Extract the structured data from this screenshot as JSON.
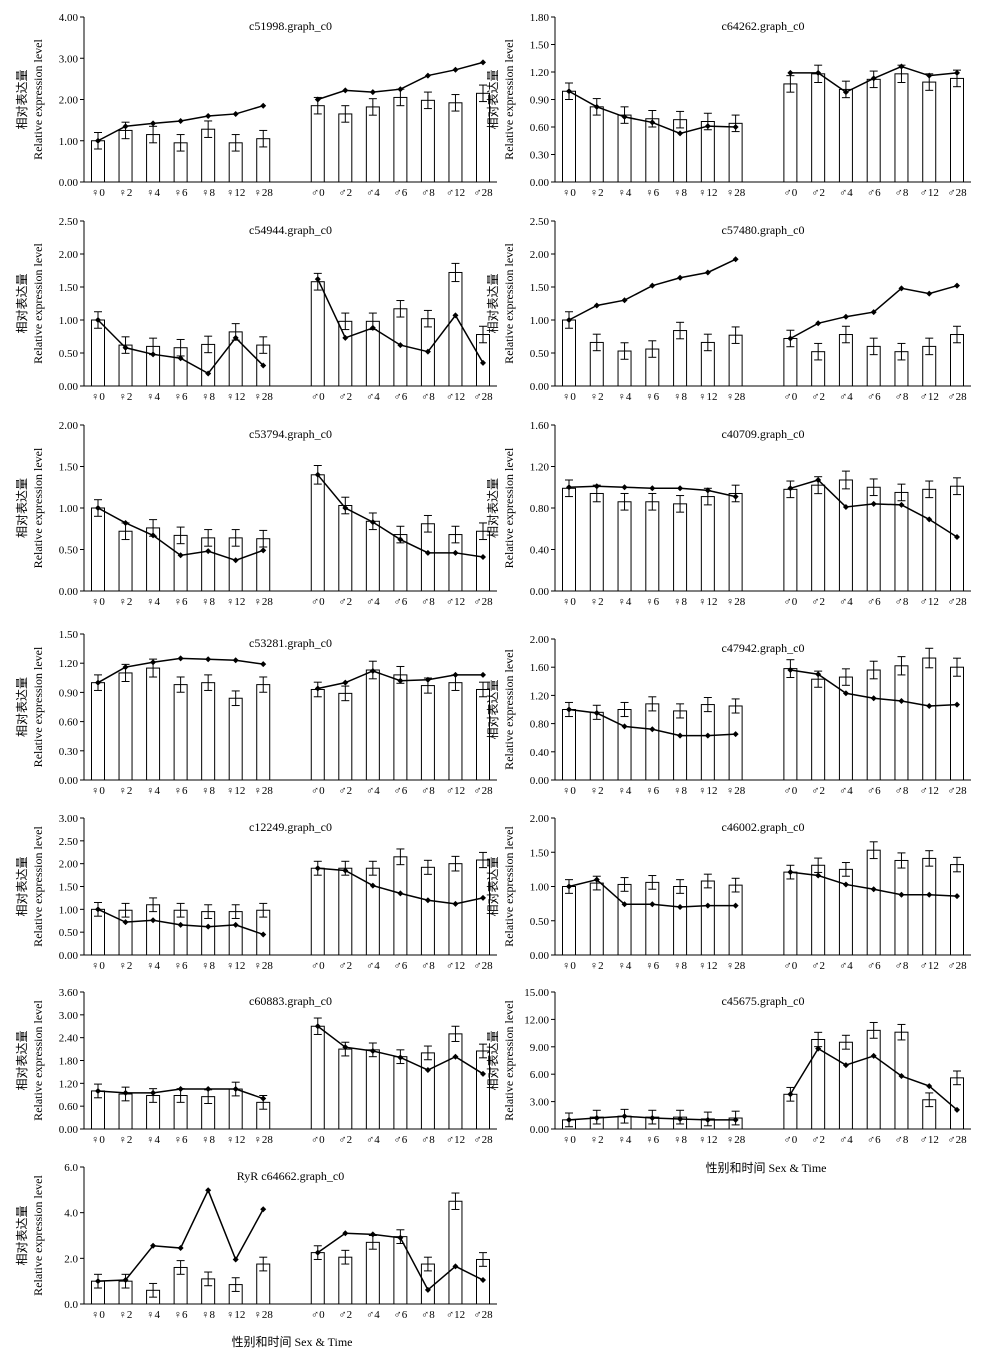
{
  "figure": {
    "ylabel_zh": "相对表达量",
    "ylabel_en": "Relative expression level",
    "xlabel": "性别和时间 Sex & Time",
    "categories": [
      "♀0",
      "♀2",
      "♀4",
      "♀6",
      "♀8",
      "♀12",
      "♀28",
      "♂0",
      "♂2",
      "♂4",
      "♂6",
      "♂8",
      "♂12",
      "♂28"
    ]
  },
  "chart_data": [
    {
      "type": "bar",
      "title": "c51998.graph_c0",
      "ylim": [
        0,
        4.0
      ],
      "yticks": [
        "0.00",
        "1.00",
        "2.00",
        "3.00",
        "4.00"
      ],
      "series": [
        {
          "values": [
            1.0,
            1.25,
            1.15,
            0.95,
            1.28,
            0.95,
            1.05,
            1.85,
            1.65,
            1.82,
            2.05,
            1.98,
            1.92,
            2.15
          ]
        },
        {
          "values": [
            1.0,
            1.35,
            1.42,
            1.48,
            1.6,
            1.65,
            1.85,
            2.0,
            2.22,
            2.18,
            2.25,
            2.58,
            2.72,
            2.9
          ]
        }
      ]
    },
    {
      "type": "bar",
      "title": "c64262.graph_c0",
      "ylim": [
        0,
        1.8
      ],
      "yticks": [
        "0.00",
        "0.30",
        "0.60",
        "0.90",
        "1.20",
        "1.50",
        "1.80"
      ],
      "series": [
        {
          "values": [
            0.99,
            0.82,
            0.73,
            0.69,
            0.68,
            0.66,
            0.64,
            1.07,
            1.18,
            1.01,
            1.12,
            1.18,
            1.09,
            1.13
          ]
        },
        {
          "values": [
            0.99,
            0.82,
            0.71,
            0.65,
            0.53,
            0.61,
            0.6,
            1.19,
            1.19,
            0.98,
            1.13,
            1.26,
            1.16,
            1.19
          ]
        }
      ]
    },
    {
      "type": "bar",
      "title": "c54944.graph_c0",
      "ylim": [
        0,
        2.5
      ],
      "yticks": [
        "0.00",
        "0.50",
        "1.00",
        "1.50",
        "2.00",
        "2.50"
      ],
      "series": [
        {
          "values": [
            1.0,
            0.62,
            0.6,
            0.58,
            0.63,
            0.82,
            0.62,
            1.58,
            0.98,
            0.98,
            1.17,
            1.02,
            1.72,
            0.78
          ]
        },
        {
          "values": [
            1.0,
            0.58,
            0.48,
            0.42,
            0.19,
            0.73,
            0.31,
            1.62,
            0.73,
            0.88,
            0.62,
            0.52,
            1.07,
            0.35
          ]
        }
      ]
    },
    {
      "type": "bar",
      "title": "c57480.graph_c0",
      "ylim": [
        0,
        2.5
      ],
      "yticks": [
        "0.00",
        "0.50",
        "1.00",
        "1.50",
        "2.00",
        "2.50"
      ],
      "series": [
        {
          "values": [
            1.0,
            0.66,
            0.53,
            0.56,
            0.84,
            0.66,
            0.77,
            0.72,
            0.52,
            0.78,
            0.6,
            0.52,
            0.6,
            0.78
          ]
        },
        {
          "values": [
            1.0,
            1.22,
            1.3,
            1.52,
            1.64,
            1.72,
            1.92,
            0.72,
            0.95,
            1.05,
            1.12,
            1.48,
            1.4,
            1.52
          ]
        }
      ]
    },
    {
      "type": "bar",
      "title": "c53794.graph_c0",
      "ylim": [
        0,
        2.0
      ],
      "yticks": [
        "0.00",
        "0.50",
        "1.00",
        "1.50",
        "2.00"
      ],
      "series": [
        {
          "values": [
            1.0,
            0.72,
            0.76,
            0.67,
            0.64,
            0.64,
            0.63,
            1.4,
            1.03,
            0.84,
            0.68,
            0.81,
            0.68,
            0.72
          ]
        },
        {
          "values": [
            1.0,
            0.82,
            0.67,
            0.43,
            0.48,
            0.37,
            0.49,
            1.4,
            1.0,
            0.83,
            0.62,
            0.46,
            0.46,
            0.41
          ]
        }
      ]
    },
    {
      "type": "bar",
      "title": "c40709.graph_c0",
      "ylim": [
        0,
        1.6
      ],
      "yticks": [
        "0.00",
        "0.40",
        "0.80",
        "1.20",
        "1.60"
      ],
      "series": [
        {
          "values": [
            0.99,
            0.94,
            0.86,
            0.86,
            0.84,
            0.91,
            0.94,
            0.98,
            1.02,
            1.07,
            1.0,
            0.95,
            0.98,
            1.01
          ]
        },
        {
          "values": [
            1.0,
            1.01,
            1.0,
            0.99,
            0.99,
            0.97,
            0.91,
            0.99,
            1.07,
            0.81,
            0.84,
            0.83,
            0.69,
            0.52
          ]
        }
      ]
    },
    {
      "type": "bar",
      "title": "c53281.graph_c0",
      "ylim": [
        0,
        1.5
      ],
      "yticks": [
        "0.00",
        "0.30",
        "0.60",
        "0.90",
        "1.20",
        "1.50"
      ],
      "series": [
        {
          "values": [
            1.0,
            1.1,
            1.15,
            0.98,
            1.0,
            0.84,
            0.98,
            0.93,
            0.89,
            1.13,
            1.08,
            0.97,
            1.0,
            0.93
          ]
        },
        {
          "values": [
            1.0,
            1.16,
            1.21,
            1.25,
            1.24,
            1.23,
            1.19,
            0.94,
            1.0,
            1.12,
            1.02,
            1.03,
            1.08,
            1.08
          ]
        }
      ]
    },
    {
      "type": "bar",
      "title": "c47942.graph_c0",
      "ylim": [
        0,
        2.0
      ],
      "yticks": [
        "0.00",
        "0.40",
        "0.80",
        "1.20",
        "1.60",
        "2.00"
      ],
      "series": [
        {
          "values": [
            1.0,
            0.96,
            1.0,
            1.08,
            0.98,
            1.07,
            1.05,
            1.58,
            1.43,
            1.46,
            1.56,
            1.62,
            1.73,
            1.6
          ]
        },
        {
          "values": [
            1.0,
            0.95,
            0.76,
            0.72,
            0.63,
            0.63,
            0.65,
            1.56,
            1.5,
            1.23,
            1.16,
            1.12,
            1.05,
            1.07
          ]
        }
      ]
    },
    {
      "type": "bar",
      "title": "c12249.graph_c0",
      "ylim": [
        0,
        3.0
      ],
      "yticks": [
        "0.00",
        "0.50",
        "1.00",
        "1.50",
        "2.00",
        "2.50",
        "3.00"
      ],
      "series": [
        {
          "values": [
            1.0,
            0.98,
            1.1,
            0.98,
            0.95,
            0.95,
            0.98,
            1.9,
            1.9,
            1.9,
            2.15,
            1.92,
            2.0,
            2.08
          ]
        },
        {
          "values": [
            1.0,
            0.72,
            0.76,
            0.66,
            0.62,
            0.66,
            0.45,
            1.9,
            1.85,
            1.52,
            1.35,
            1.2,
            1.12,
            1.25
          ]
        }
      ]
    },
    {
      "type": "bar",
      "title": "c46002.graph_c0",
      "ylim": [
        0,
        2.0
      ],
      "yticks": [
        "0.00",
        "0.50",
        "1.00",
        "1.50",
        "2.00"
      ],
      "series": [
        {
          "values": [
            1.0,
            1.05,
            1.03,
            1.06,
            1.0,
            1.08,
            1.02,
            1.21,
            1.31,
            1.25,
            1.53,
            1.38,
            1.41,
            1.32
          ]
        },
        {
          "values": [
            1.0,
            1.1,
            0.74,
            0.74,
            0.7,
            0.72,
            0.72,
            1.21,
            1.16,
            1.03,
            0.96,
            0.88,
            0.88,
            0.86
          ]
        }
      ]
    },
    {
      "type": "bar",
      "title": "c60883.graph_c0",
      "ylim": [
        0,
        3.6
      ],
      "yticks": [
        "0.00",
        "0.60",
        "1.20",
        "1.80",
        "2.40",
        "3.00",
        "3.60"
      ],
      "series": [
        {
          "values": [
            1.0,
            0.92,
            0.88,
            0.88,
            0.85,
            1.05,
            0.7,
            2.7,
            2.1,
            2.08,
            1.9,
            2.0,
            2.5,
            2.05
          ]
        },
        {
          "values": [
            1.0,
            0.95,
            0.95,
            1.05,
            1.05,
            1.05,
            0.8,
            2.7,
            2.15,
            2.05,
            1.88,
            1.55,
            1.9,
            1.45
          ]
        }
      ]
    },
    {
      "type": "bar",
      "title": "c45675.graph_c0",
      "ylim": [
        0,
        15.0
      ],
      "yticks": [
        "0.00",
        "3.00",
        "6.00",
        "9.00",
        "12.00",
        "15.00"
      ],
      "series": [
        {
          "values": [
            1.0,
            1.3,
            1.4,
            1.3,
            1.3,
            1.1,
            1.2,
            3.8,
            9.8,
            9.5,
            10.8,
            10.6,
            3.2,
            5.6
          ]
        },
        {
          "values": [
            1.0,
            1.2,
            1.4,
            1.2,
            1.1,
            1.0,
            1.0,
            3.8,
            8.8,
            7.0,
            8.0,
            5.8,
            4.7,
            2.1
          ]
        }
      ]
    },
    {
      "type": "bar",
      "title": "RyR c64662.graph_c0",
      "ylim": [
        0,
        6.0
      ],
      "yticks": [
        "0.0",
        "2.0",
        "4.0",
        "6.0"
      ],
      "series": [
        {
          "values": [
            1.0,
            1.0,
            0.6,
            1.6,
            1.1,
            0.85,
            1.75,
            2.25,
            2.05,
            2.7,
            2.95,
            1.75,
            4.5,
            1.95
          ]
        },
        {
          "values": [
            1.0,
            1.05,
            2.55,
            2.45,
            4.98,
            1.95,
            4.15,
            2.25,
            3.1,
            3.05,
            2.9,
            0.62,
            1.65,
            1.05
          ]
        }
      ]
    }
  ]
}
